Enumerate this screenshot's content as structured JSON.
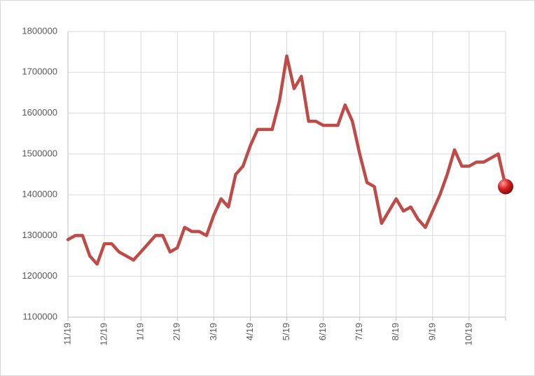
{
  "chart_data": {
    "type": "line",
    "categories": [
      "11/19",
      null,
      null,
      null,
      null,
      "12/19",
      null,
      null,
      null,
      null,
      "1/19",
      null,
      null,
      null,
      null,
      "2/19",
      null,
      null,
      null,
      null,
      "3/19",
      null,
      null,
      null,
      null,
      "4/19",
      null,
      null,
      null,
      null,
      "5/19",
      null,
      null,
      null,
      null,
      "6/19",
      null,
      null,
      null,
      null,
      "7/19",
      null,
      null,
      null,
      null,
      "8/19",
      null,
      null,
      null,
      null,
      "9/19",
      null,
      null,
      null,
      null,
      "10/19",
      null,
      null,
      null,
      null,
      null
    ],
    "series": [
      {
        "color": "#be4b48",
        "values": [
          1290000,
          1300000,
          1300000,
          1250000,
          1230000,
          1280000,
          1280000,
          1260000,
          1250000,
          1240000,
          1260000,
          1280000,
          1300000,
          1300000,
          1260000,
          1270000,
          1320000,
          1310000,
          1310000,
          1300000,
          1350000,
          1390000,
          1370000,
          1450000,
          1470000,
          1520000,
          1560000,
          1560000,
          1560000,
          1630000,
          1740000,
          1660000,
          1690000,
          1580000,
          1580000,
          1570000,
          1570000,
          1570000,
          1620000,
          1580000,
          1500000,
          1430000,
          1420000,
          1330000,
          1360000,
          1390000,
          1360000,
          1370000,
          1340000,
          1320000,
          1360000,
          1400000,
          1450000,
          1510000,
          1470000,
          1470000,
          1480000,
          1480000,
          1490000,
          1500000,
          1420000
        ]
      }
    ],
    "ylim": [
      1100000,
      1800000
    ],
    "yticks": [
      1100000,
      1200000,
      1300000,
      1400000,
      1500000,
      1600000,
      1700000,
      1800000
    ],
    "grid": true
  }
}
